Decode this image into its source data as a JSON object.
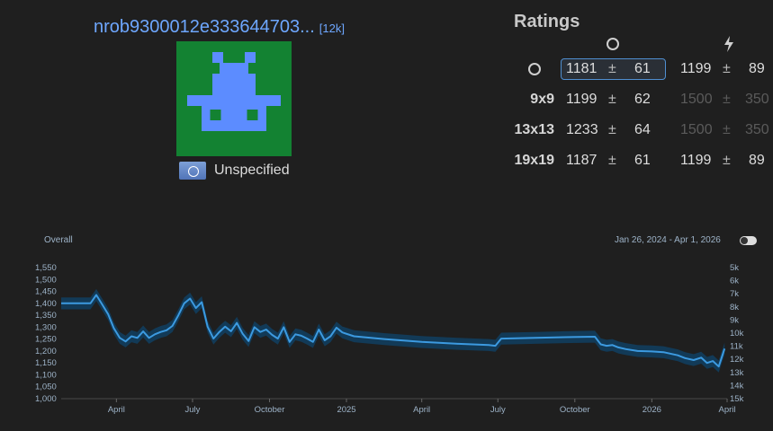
{
  "player": {
    "name": "nrob9300012e333644703...",
    "rank": "[12k]",
    "country": "Unspecified",
    "avatar_colors": {
      "background": "#138232",
      "figure": "#5c8cff"
    }
  },
  "ratings": {
    "title": "Ratings",
    "columns": [
      {
        "icon": "circle-icon"
      },
      {
        "icon": "bolt-icon"
      }
    ],
    "rows": [
      {
        "label_icon": "circle-icon",
        "label": "",
        "overall": {
          "rating": "1181",
          "pm": "±",
          "dev": "61"
        },
        "blitz": {
          "rating": "1199",
          "pm": "±",
          "dev": "89"
        },
        "selected": true
      },
      {
        "label": "9x9",
        "overall": {
          "rating": "1199",
          "pm": "±",
          "dev": "62"
        },
        "blitz": {
          "rating": "1500",
          "pm": "±",
          "dev": "350"
        },
        "blitz_dim": true
      },
      {
        "label": "13x13",
        "overall": {
          "rating": "1233",
          "pm": "±",
          "dev": "64"
        },
        "blitz": {
          "rating": "1500",
          "pm": "±",
          "dev": "350"
        },
        "blitz_dim": true
      },
      {
        "label": "19x19",
        "overall": {
          "rating": "1187",
          "pm": "±",
          "dev": "61"
        },
        "blitz": {
          "rating": "1199",
          "pm": "±",
          "dev": "89"
        }
      }
    ]
  },
  "chart_header": {
    "label": "Overall",
    "date_range": "Jan 26, 2024 - Apr 1, 2026",
    "toggle_on": false
  },
  "chart_data": {
    "type": "line",
    "title": "",
    "ylabel": "",
    "ylim": [
      1000,
      1550
    ],
    "y_ticks": [
      "1,550",
      "1,500",
      "1,450",
      "1,400",
      "1,350",
      "1,300",
      "1,250",
      "1,200",
      "1,150",
      "1,100",
      "1,050",
      "1,000"
    ],
    "rank_ticks": [
      "5k",
      "6k",
      "7k",
      "8k",
      "9k",
      "10k",
      "11k",
      "12k",
      "13k",
      "14k",
      "15k"
    ],
    "x_ticks": [
      "April",
      "July",
      "October",
      "2025",
      "April",
      "July",
      "October",
      "2026",
      "April"
    ],
    "x_range": [
      "2024-01-26",
      "2026-04-01"
    ],
    "series": [
      {
        "x": [
          "2024-01-26",
          "2024-03-01",
          "2024-03-08",
          "2024-03-15",
          "2024-03-22",
          "2024-03-29",
          "2024-04-05",
          "2024-04-12",
          "2024-04-19",
          "2024-04-26",
          "2024-05-03",
          "2024-05-10",
          "2024-05-17",
          "2024-05-24",
          "2024-05-31",
          "2024-06-07",
          "2024-06-14",
          "2024-06-21",
          "2024-06-28",
          "2024-07-05",
          "2024-07-12",
          "2024-07-19",
          "2024-07-26",
          "2024-08-02",
          "2024-08-09",
          "2024-08-16",
          "2024-08-23",
          "2024-08-30",
          "2024-09-06",
          "2024-09-13",
          "2024-09-20",
          "2024-09-27",
          "2024-10-04",
          "2024-10-11",
          "2024-10-18",
          "2024-10-25",
          "2024-11-01",
          "2024-11-08",
          "2024-11-15",
          "2024-11-22",
          "2024-11-29",
          "2024-12-06",
          "2024-12-13",
          "2024-12-20",
          "2024-12-27",
          "2025-01-10",
          "2025-02-15",
          "2025-04-01",
          "2025-05-15",
          "2025-06-20",
          "2025-06-28",
          "2025-07-05",
          "2025-08-15",
          "2025-09-20",
          "2025-10-25",
          "2025-11-01",
          "2025-11-08",
          "2025-11-15",
          "2025-11-22",
          "2025-12-01",
          "2025-12-15",
          "2026-01-01",
          "2026-01-15",
          "2026-02-01",
          "2026-02-10",
          "2026-02-20",
          "2026-03-01",
          "2026-03-08",
          "2026-03-15",
          "2026-03-22",
          "2026-03-29"
        ],
        "y": [
          1400,
          1400,
          1435,
          1395,
          1355,
          1295,
          1255,
          1240,
          1262,
          1255,
          1282,
          1255,
          1270,
          1280,
          1287,
          1305,
          1350,
          1400,
          1420,
          1380,
          1405,
          1302,
          1252,
          1280,
          1302,
          1283,
          1318,
          1272,
          1242,
          1300,
          1280,
          1290,
          1268,
          1252,
          1300,
          1238,
          1270,
          1264,
          1252,
          1238,
          1290,
          1245,
          1262,
          1298,
          1278,
          1262,
          1250,
          1238,
          1230,
          1225,
          1222,
          1252,
          1255,
          1258,
          1260,
          1228,
          1222,
          1225,
          1215,
          1208,
          1200,
          1198,
          1195,
          1182,
          1170,
          1162,
          1172,
          1150,
          1158,
          1135,
          1210
        ],
        "band": 25,
        "color": "#3c9ae0",
        "band_color": "#123a57"
      }
    ]
  }
}
